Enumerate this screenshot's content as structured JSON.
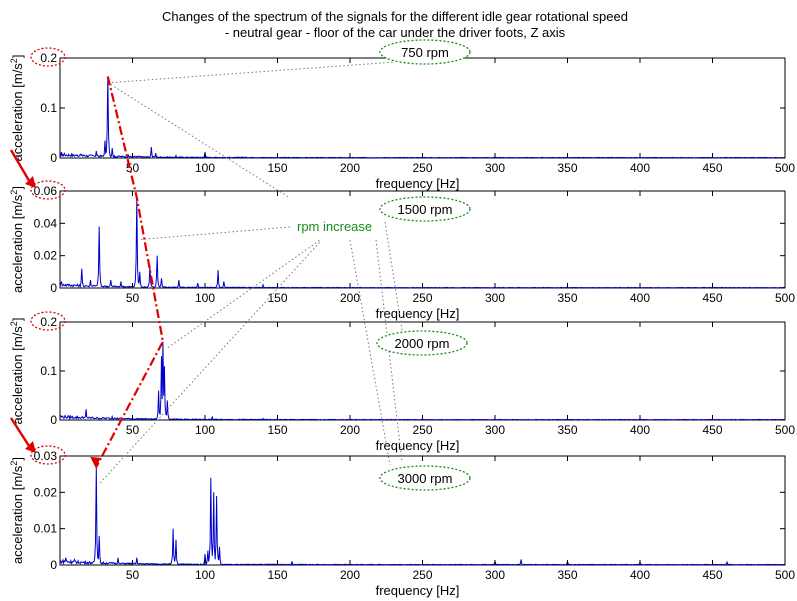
{
  "title_line1": "Changes of the spectrum of the signals for the different idle gear rotational speed",
  "title_line2": "- neutral gear - floor of the car under the driver foots, Z axis",
  "annotation": "rpm increase",
  "chart_data": [
    {
      "type": "line",
      "label": "750 rpm",
      "xlabel": "frequency [Hz]",
      "ylabel": "acceleration [m/s",
      "ylabel_exp": "2",
      "ylabel_close": "]",
      "xlim": [
        0,
        500
      ],
      "ylim": [
        0,
        0.2
      ],
      "xticks": [
        "50",
        "100",
        "150",
        "200",
        "250",
        "300",
        "350",
        "400",
        "450",
        "500"
      ],
      "yticks": [
        "0",
        "0.1",
        "0.2"
      ],
      "grid": false,
      "peaks": [
        [
          1,
          0.012
        ],
        [
          15,
          0.006
        ],
        [
          25,
          0.014
        ],
        [
          31,
          0.035
        ],
        [
          33,
          0.163
        ],
        [
          36,
          0.02
        ],
        [
          47,
          0.006
        ],
        [
          54,
          0.004
        ],
        [
          63,
          0.022
        ],
        [
          66,
          0.01
        ],
        [
          80,
          0.005
        ],
        [
          100,
          0.012
        ],
        [
          126,
          0.002
        ],
        [
          150,
          0.002
        ]
      ]
    },
    {
      "type": "line",
      "label": "1500 rpm",
      "xlabel": "frequency [Hz]",
      "ylabel": "acceleration [m/s",
      "ylabel_exp": "2",
      "ylabel_close": "]",
      "xlim": [
        0,
        500
      ],
      "ylim": [
        0,
        0.06
      ],
      "xticks": [
        "50",
        "100",
        "150",
        "200",
        "250",
        "300",
        "350",
        "400",
        "450",
        "500"
      ],
      "yticks": [
        "0",
        "0.02",
        "0.04",
        "0.06"
      ],
      "grid": false,
      "peaks": [
        [
          1,
          0.004
        ],
        [
          15,
          0.012
        ],
        [
          21,
          0.005
        ],
        [
          27,
          0.038
        ],
        [
          35,
          0.005
        ],
        [
          42,
          0.004
        ],
        [
          53,
          0.056
        ],
        [
          55,
          0.01
        ],
        [
          62,
          0.014
        ],
        [
          67,
          0.02
        ],
        [
          70,
          0.006
        ],
        [
          82,
          0.005
        ],
        [
          95,
          0.003
        ],
        [
          109,
          0.011
        ],
        [
          113,
          0.004
        ],
        [
          140,
          0.002
        ]
      ]
    },
    {
      "type": "line",
      "label": "2000 rpm",
      "xlabel": "frequency [Hz]",
      "ylabel": "acceleration [m/s",
      "ylabel_exp": "2",
      "ylabel_close": "]",
      "xlim": [
        0,
        500
      ],
      "ylim": [
        0,
        0.2
      ],
      "xticks": [
        "50",
        "100",
        "150",
        "200",
        "250",
        "300",
        "350",
        "400",
        "450",
        "500"
      ],
      "yticks": [
        "0",
        "0.1",
        "0.2"
      ],
      "grid": false,
      "peaks": [
        [
          18,
          0.022
        ],
        [
          36,
          0.007
        ],
        [
          68,
          0.06
        ],
        [
          70,
          0.13
        ],
        [
          71,
          0.16
        ],
        [
          72,
          0.11
        ],
        [
          74,
          0.04
        ],
        [
          105,
          0.006
        ],
        [
          140,
          0.003
        ]
      ]
    },
    {
      "type": "line",
      "label": "3000 rpm",
      "xlabel": "frequency [Hz]",
      "ylabel": "acceleration [m/s",
      "ylabel_exp": "2",
      "ylabel_close": "]",
      "xlim": [
        0,
        500
      ],
      "ylim": [
        0,
        0.03
      ],
      "xticks": [
        "50",
        "100",
        "150",
        "200",
        "250",
        "300",
        "350",
        "400",
        "450",
        "500"
      ],
      "yticks": [
        "0",
        "0.01",
        "0.02",
        "0.03"
      ],
      "grid": false,
      "peaks": [
        [
          4,
          0.002
        ],
        [
          10,
          0.0015
        ],
        [
          25,
          0.027
        ],
        [
          27,
          0.008
        ],
        [
          40,
          0.002
        ],
        [
          53,
          0.002
        ],
        [
          78,
          0.01
        ],
        [
          80,
          0.007
        ],
        [
          100,
          0.003
        ],
        [
          102,
          0.004
        ],
        [
          104,
          0.024
        ],
        [
          106,
          0.02
        ],
        [
          108,
          0.019
        ],
        [
          110,
          0.005
        ],
        [
          160,
          0.001
        ],
        [
          300,
          0.001
        ],
        [
          318,
          0.0015
        ],
        [
          350,
          0.001
        ],
        [
          400,
          0.0008
        ],
        [
          460,
          0.0008
        ]
      ]
    }
  ]
}
